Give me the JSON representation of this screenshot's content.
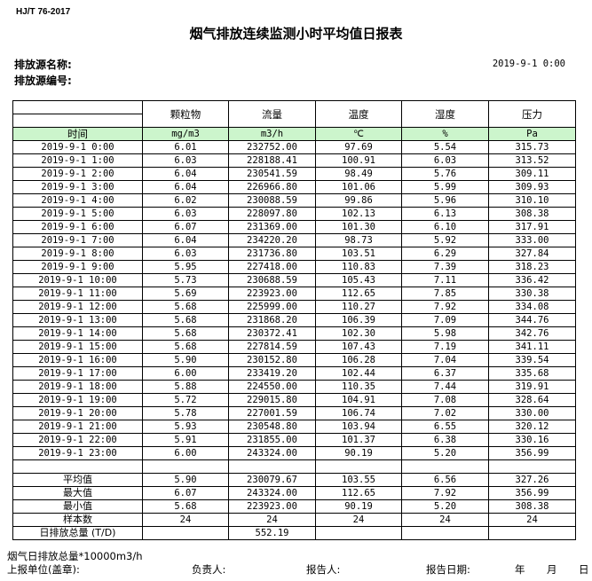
{
  "standard": "HJ/T  76-2017",
  "title": "烟气排放连续监测小时平均值日报表",
  "source_name_label": "排放源名称:",
  "source_code_label": "排放源编号:",
  "report_datetime": "2019-9-1 0:00",
  "table": {
    "time_header": "时间",
    "columns": [
      {
        "name": "颗粒物",
        "unit": "mg/m3"
      },
      {
        "name": "流量",
        "unit": "m3/h"
      },
      {
        "name": "温度",
        "unit": "℃"
      },
      {
        "name": "湿度",
        "unit": "%"
      },
      {
        "name": "压力",
        "unit": "Pa"
      }
    ],
    "rows": [
      [
        "2019-9-1 0:00",
        "6.01",
        "232752.00",
        "97.69",
        "5.54",
        "315.73"
      ],
      [
        "2019-9-1 1:00",
        "6.03",
        "228188.41",
        "100.91",
        "6.03",
        "313.52"
      ],
      [
        "2019-9-1 2:00",
        "6.04",
        "230541.59",
        "98.49",
        "5.76",
        "309.11"
      ],
      [
        "2019-9-1 3:00",
        "6.04",
        "226966.80",
        "101.06",
        "5.99",
        "309.93"
      ],
      [
        "2019-9-1 4:00",
        "6.02",
        "230088.59",
        "99.86",
        "5.96",
        "310.10"
      ],
      [
        "2019-9-1 5:00",
        "6.03",
        "228097.80",
        "102.13",
        "6.13",
        "308.38"
      ],
      [
        "2019-9-1 6:00",
        "6.07",
        "231369.00",
        "101.30",
        "6.10",
        "317.91"
      ],
      [
        "2019-9-1 7:00",
        "6.04",
        "234220.20",
        "98.73",
        "5.92",
        "333.00"
      ],
      [
        "2019-9-1 8:00",
        "6.03",
        "231736.80",
        "103.51",
        "6.29",
        "327.84"
      ],
      [
        "2019-9-1 9:00",
        "5.95",
        "227418.00",
        "110.83",
        "7.39",
        "318.23"
      ],
      [
        "2019-9-1 10:00",
        "5.73",
        "230688.59",
        "105.43",
        "7.11",
        "336.42"
      ],
      [
        "2019-9-1 11:00",
        "5.69",
        "223923.00",
        "112.65",
        "7.85",
        "330.38"
      ],
      [
        "2019-9-1 12:00",
        "5.68",
        "225999.00",
        "110.27",
        "7.92",
        "334.08"
      ],
      [
        "2019-9-1 13:00",
        "5.68",
        "231868.20",
        "106.39",
        "7.09",
        "344.76"
      ],
      [
        "2019-9-1 14:00",
        "5.68",
        "230372.41",
        "102.30",
        "5.98",
        "342.76"
      ],
      [
        "2019-9-1 15:00",
        "5.68",
        "227814.59",
        "107.43",
        "7.19",
        "341.11"
      ],
      [
        "2019-9-1 16:00",
        "5.90",
        "230152.80",
        "106.28",
        "7.04",
        "339.54"
      ],
      [
        "2019-9-1 17:00",
        "6.00",
        "233419.20",
        "102.44",
        "6.37",
        "335.68"
      ],
      [
        "2019-9-1 18:00",
        "5.88",
        "224550.00",
        "110.35",
        "7.44",
        "319.91"
      ],
      [
        "2019-9-1 19:00",
        "5.72",
        "229015.80",
        "104.91",
        "7.08",
        "328.64"
      ],
      [
        "2019-9-1 20:00",
        "5.78",
        "227001.59",
        "106.74",
        "7.02",
        "330.00"
      ],
      [
        "2019-9-1 21:00",
        "5.93",
        "230548.80",
        "103.94",
        "6.55",
        "320.12"
      ],
      [
        "2019-9-1 22:00",
        "5.91",
        "231855.00",
        "101.37",
        "6.38",
        "330.16"
      ],
      [
        "2019-9-1 23:00",
        "6.00",
        "243324.00",
        "90.19",
        "5.20",
        "356.99"
      ]
    ],
    "summary": [
      [
        "平均值",
        "5.90",
        "230079.67",
        "103.55",
        "6.56",
        "327.26"
      ],
      [
        "最大值",
        "6.07",
        "243324.00",
        "112.65",
        "7.92",
        "356.99"
      ],
      [
        "最小值",
        "5.68",
        "223923.00",
        "90.19",
        "5.20",
        "308.38"
      ],
      [
        "样本数",
        "24",
        "24",
        "24",
        "24",
        "24"
      ],
      [
        "日排放总量 (T/D)",
        "",
        "552.19",
        "",
        "",
        ""
      ]
    ]
  },
  "footer": {
    "note": "烟气日排放总量*10000m3/h",
    "unit_label": "上报单位(盖章):",
    "responsible_label": "负责人:",
    "reporter_label": "报告人:",
    "report_date_label": "报告日期:",
    "year": "年",
    "month": "月",
    "day": "日"
  }
}
